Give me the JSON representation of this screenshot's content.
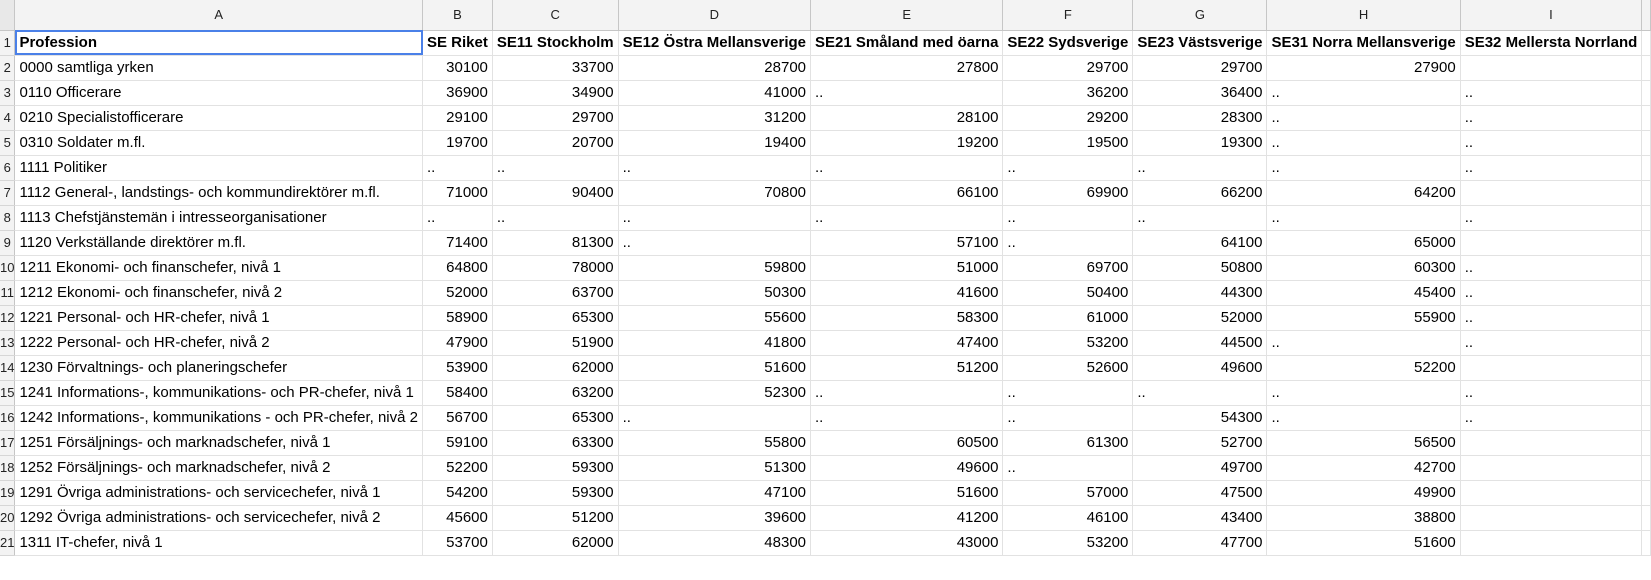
{
  "columns": [
    "A",
    "B",
    "C",
    "D",
    "E",
    "F",
    "G",
    "H",
    "I"
  ],
  "header_row": [
    "Profession",
    "SE Riket",
    "SE11 Stockholm",
    "SE12 Östra Mellansverige",
    "SE21 Småland med öarna",
    "SE22 Sydsverige",
    "SE23 Västsverige",
    "SE31 Norra Mellansverige",
    "SE32 Mellersta Norrland"
  ],
  "rows": [
    [
      "0000 samtliga yrken",
      "30100",
      "33700",
      "28700",
      "27800",
      "29700",
      "29700",
      "27900",
      ""
    ],
    [
      "0110 Officerare",
      "36900",
      "34900",
      "41000",
      "..",
      "36200",
      "36400",
      "..",
      ".."
    ],
    [
      "0210 Specialistofficerare",
      "29100",
      "29700",
      "31200",
      "28100",
      "29200",
      "28300",
      "..",
      ".."
    ],
    [
      "0310 Soldater m.fl.",
      "19700",
      "20700",
      "19400",
      "19200",
      "19500",
      "19300",
      "..",
      ".."
    ],
    [
      "1111 Politiker",
      "..",
      "..",
      "..",
      "..",
      "..",
      "..",
      "..",
      ".."
    ],
    [
      "1112 General-, landstings- och kommundirektörer m.fl.",
      "71000",
      "90400",
      "70800",
      "66100",
      "69900",
      "66200",
      "64200",
      ""
    ],
    [
      "1113 Chefstjänstemän i intresseorganisationer",
      "..",
      "..",
      "..",
      "..",
      "..",
      "..",
      "..",
      ".."
    ],
    [
      "1120 Verkställande direktörer m.fl.",
      "71400",
      "81300",
      "..",
      "57100",
      "..",
      "64100",
      "65000",
      ""
    ],
    [
      "1211 Ekonomi- och finanschefer, nivå 1",
      "64800",
      "78000",
      "59800",
      "51000",
      "69700",
      "50800",
      "60300",
      ".."
    ],
    [
      "1212 Ekonomi- och finanschefer, nivå 2",
      "52000",
      "63700",
      "50300",
      "41600",
      "50400",
      "44300",
      "45400",
      ".."
    ],
    [
      "1221 Personal- och HR-chefer, nivå 1",
      "58900",
      "65300",
      "55600",
      "58300",
      "61000",
      "52000",
      "55900",
      ".."
    ],
    [
      "1222 Personal- och HR-chefer, nivå 2",
      "47900",
      "51900",
      "41800",
      "47400",
      "53200",
      "44500",
      "..",
      ".."
    ],
    [
      "1230 Förvaltnings- och planeringschefer",
      "53900",
      "62000",
      "51600",
      "51200",
      "52600",
      "49600",
      "52200",
      ""
    ],
    [
      "1241 Informations-, kommunikations- och PR-chefer, nivå 1",
      "58400",
      "63200",
      "52300",
      "..",
      "..",
      "..",
      "..",
      ".."
    ],
    [
      "1242 Informations-, kommunikations - och PR-chefer, nivå 2",
      "56700",
      "65300",
      "..",
      "..",
      "..",
      "54300",
      "..",
      ".."
    ],
    [
      "1251 Försäljnings- och marknadschefer, nivå 1",
      "59100",
      "63300",
      "55800",
      "60500",
      "61300",
      "52700",
      "56500",
      ""
    ],
    [
      "1252 Försäljnings- och marknadschefer, nivå 2",
      "52200",
      "59300",
      "51300",
      "49600",
      "..",
      "49700",
      "42700",
      ""
    ],
    [
      "1291 Övriga administrations- och servicechefer, nivå 1",
      "54200",
      "59300",
      "47100",
      "51600",
      "57000",
      "47500",
      "49900",
      ""
    ],
    [
      "1292 Övriga administrations- och servicechefer, nivå 2",
      "45600",
      "51200",
      "39600",
      "41200",
      "46100",
      "43400",
      "38800",
      ""
    ],
    [
      "1311 IT-chefer, nivå 1",
      "53700",
      "62000",
      "48300",
      "43000",
      "53200",
      "47700",
      "51600",
      ""
    ]
  ]
}
